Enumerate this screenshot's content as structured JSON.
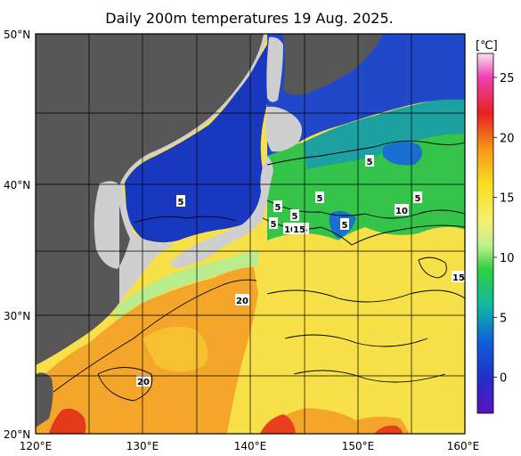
{
  "title": "Daily 200m temperatures 19 Aug. 2025.",
  "colorbar": {
    "unit": "[℃]",
    "ticks": [
      "25",
      "20",
      "15",
      "10",
      "5",
      "0"
    ],
    "range": [
      -3,
      27
    ],
    "stops": [
      {
        "t": 27,
        "color": "#f7e0f0"
      },
      {
        "t": 25,
        "color": "#f040b0"
      },
      {
        "t": 22,
        "color": "#e82020"
      },
      {
        "t": 19,
        "color": "#f59a18"
      },
      {
        "t": 16,
        "color": "#f8e020"
      },
      {
        "t": 13,
        "color": "#f6f070"
      },
      {
        "t": 11,
        "color": "#c0f090"
      },
      {
        "t": 9,
        "color": "#30d040"
      },
      {
        "t": 6,
        "color": "#10b8a0"
      },
      {
        "t": 3,
        "color": "#1060d8"
      },
      {
        "t": 0,
        "color": "#2030c8"
      },
      {
        "t": -3,
        "color": "#6010c0"
      }
    ]
  },
  "axes": {
    "lat_labels": [
      "50°N",
      "40°N",
      "30°N",
      "20°N"
    ],
    "lon_labels": [
      "120°E",
      "130°E",
      "140°E",
      "150°E",
      "160°E"
    ]
  },
  "contour_labels": [
    "5",
    "5",
    "5",
    "5",
    "5",
    "5",
    "5",
    "10",
    "5",
    "5",
    "10",
    "15",
    "5",
    "20",
    "20",
    "15"
  ],
  "colors": {
    "land": "#cfcfcf",
    "out_of_domain": "#555555",
    "contour": "#000000",
    "grid": "#000000",
    "sea_of_japan": "#1838c0",
    "warm_ocean": "#f8d028",
    "hot_ocean": "#f0a020"
  }
}
